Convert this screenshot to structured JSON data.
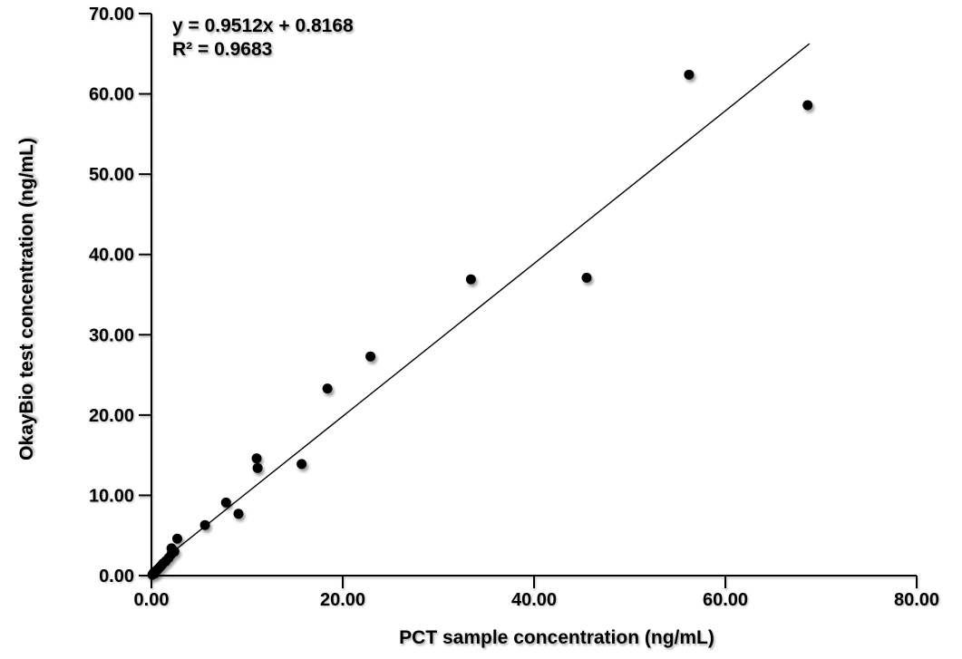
{
  "chart_data": {
    "type": "scatter",
    "title": "",
    "xlabel": "PCT sample concentration (ng/mL)",
    "ylabel": "OkayBio test concentration (ng/mL)",
    "xlim": [
      0,
      80
    ],
    "ylim": [
      0,
      70
    ],
    "x_ticks": [
      0,
      20,
      40,
      60,
      80
    ],
    "y_ticks": [
      0,
      10,
      20,
      30,
      40,
      50,
      60,
      70
    ],
    "tick_format_decimals": 2,
    "grid": false,
    "legend": "none",
    "marker_color": "#000000",
    "line_color": "#000000",
    "background_color": "#ffffff",
    "points": [
      [
        0.1,
        0.1
      ],
      [
        0.2,
        0.3
      ],
      [
        0.35,
        0.25
      ],
      [
        0.4,
        0.5
      ],
      [
        0.6,
        0.7
      ],
      [
        0.8,
        0.95
      ],
      [
        1.0,
        1.2
      ],
      [
        1.2,
        1.5
      ],
      [
        1.5,
        1.8
      ],
      [
        1.8,
        2.2
      ],
      [
        2.1,
        2.7
      ],
      [
        2.1,
        3.4
      ],
      [
        2.4,
        3.0
      ],
      [
        2.7,
        4.6
      ],
      [
        5.6,
        6.3
      ],
      [
        7.8,
        9.1
      ],
      [
        9.1,
        7.7
      ],
      [
        11.0,
        14.6
      ],
      [
        11.1,
        13.4
      ],
      [
        15.7,
        13.9
      ],
      [
        18.4,
        23.3
      ],
      [
        22.9,
        27.3
      ],
      [
        33.4,
        36.9
      ],
      [
        45.5,
        37.1
      ],
      [
        56.2,
        62.4
      ],
      [
        68.6,
        58.6
      ]
    ],
    "trendline": {
      "slope": 0.9512,
      "intercept": 0.8168,
      "x_start": 0,
      "x_end": 68.8
    },
    "annotation": {
      "equation": "y = 0.9512x + 0.8168",
      "r_squared": "R² = 0.9683"
    }
  }
}
